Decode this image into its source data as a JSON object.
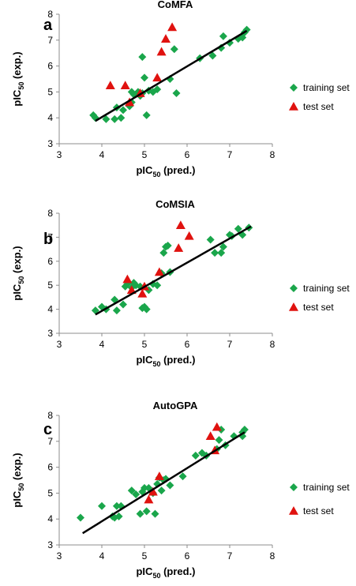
{
  "colors": {
    "training": "#1aa64b",
    "test": "#e0120f",
    "axis": "#8c8c8c",
    "fit": "#000000"
  },
  "chart_data": [
    {
      "type": "scatter",
      "letter": "a",
      "title": "CoMFA",
      "xlabel_main": "pIC",
      "xlabel_sub": "50",
      "xlabel_suffix": " (pred.)",
      "ylabel_main": "pIC",
      "ylabel_sub": "50",
      "ylabel_suffix": " (exp.)",
      "xlim": [
        3,
        8
      ],
      "ylim": [
        3,
        8
      ],
      "xticks": [
        "3",
        "4",
        "5",
        "6",
        "7",
        "8"
      ],
      "yticks": [
        "3",
        "4",
        "5",
        "6",
        "7",
        "8"
      ],
      "fit_line": {
        "x": [
          3.85,
          7.4
        ],
        "y": [
          3.88,
          7.36
        ]
      },
      "series": [
        {
          "name": "training set",
          "marker": "diamond",
          "x": [
            3.8,
            3.85,
            4.1,
            4.3,
            4.35,
            4.45,
            4.5,
            4.65,
            4.7,
            4.7,
            4.75,
            4.85,
            4.9,
            4.95,
            5.0,
            5.05,
            5.1,
            5.2,
            5.3,
            5.6,
            5.75,
            5.7,
            4.95,
            6.3,
            6.6,
            6.8,
            6.85,
            7.0,
            7.2,
            7.3,
            7.35,
            7.4
          ],
          "y": [
            4.1,
            4.0,
            3.95,
            3.95,
            4.4,
            4.0,
            4.3,
            4.45,
            4.6,
            5.0,
            4.9,
            5.0,
            4.85,
            6.35,
            5.55,
            4.1,
            5.05,
            5.0,
            5.1,
            5.5,
            4.95,
            6.65,
            4.95,
            6.3,
            6.4,
            6.7,
            7.15,
            6.9,
            7.05,
            7.1,
            7.3,
            7.4
          ]
        },
        {
          "name": "test set",
          "marker": "triangle",
          "x": [
            4.2,
            4.55,
            4.65,
            4.9,
            5.3,
            5.4,
            5.5,
            5.65
          ],
          "y": [
            5.25,
            5.25,
            4.6,
            4.95,
            5.55,
            6.55,
            7.05,
            7.5
          ]
        }
      ]
    },
    {
      "type": "scatter",
      "letter": "b",
      "title": "CoMSIA",
      "xlabel_main": "pIC",
      "xlabel_sub": "50",
      "xlabel_suffix": " (pred.)",
      "ylabel_main": "pIC",
      "ylabel_sub": "50",
      "ylabel_suffix": " (exp.)",
      "xlim": [
        3,
        8
      ],
      "ylim": [
        3,
        8
      ],
      "xticks": [
        "3",
        "4",
        "5",
        "6",
        "7",
        "8"
      ],
      "yticks": [
        "3",
        "4",
        "5",
        "6",
        "7",
        "8"
      ],
      "fit_line": {
        "x": [
          3.85,
          7.5
        ],
        "y": [
          3.78,
          7.45
        ]
      },
      "series": [
        {
          "name": "training set",
          "marker": "diamond",
          "x": [
            3.85,
            4.0,
            4.1,
            4.3,
            4.35,
            4.5,
            4.55,
            4.6,
            4.7,
            4.75,
            4.8,
            4.9,
            4.95,
            5.0,
            5.05,
            5.1,
            5.2,
            5.3,
            5.4,
            5.45,
            5.5,
            5.55,
            5.6,
            6.55,
            6.65,
            6.8,
            6.85,
            7.0,
            7.05,
            7.2,
            7.3,
            7.45
          ],
          "y": [
            3.95,
            4.1,
            4.0,
            4.4,
            3.95,
            4.2,
            4.95,
            5.05,
            4.9,
            5.1,
            5.0,
            4.95,
            4.05,
            4.1,
            4.0,
            4.8,
            5.05,
            5.0,
            5.5,
            6.35,
            6.6,
            6.65,
            5.55,
            6.9,
            6.35,
            6.35,
            6.6,
            7.1,
            7.05,
            7.35,
            7.1,
            7.4
          ]
        },
        {
          "name": "test set",
          "marker": "triangle",
          "x": [
            4.6,
            4.7,
            4.95,
            5.0,
            5.35,
            5.8,
            5.85,
            6.05
          ],
          "y": [
            5.25,
            4.8,
            4.65,
            4.95,
            5.55,
            6.55,
            7.5,
            7.05
          ]
        }
      ]
    },
    {
      "type": "scatter",
      "letter": "c",
      "title": "AutoGPA",
      "xlabel_main": "pIC",
      "xlabel_sub": "50",
      "xlabel_suffix": " (pred.)",
      "ylabel_main": "pIC",
      "ylabel_sub": "50",
      "ylabel_suffix": " (exp.)",
      "xlim": [
        3,
        8
      ],
      "ylim": [
        3,
        8
      ],
      "xticks": [
        "3",
        "4",
        "5",
        "6",
        "7",
        "8"
      ],
      "yticks": [
        "3",
        "4",
        "5",
        "6",
        "7",
        "8"
      ],
      "fit_line": {
        "x": [
          3.55,
          7.35
        ],
        "y": [
          3.45,
          7.35
        ]
      },
      "series": [
        {
          "name": "training set",
          "marker": "diamond",
          "x": [
            3.5,
            4.0,
            4.25,
            4.3,
            4.35,
            4.4,
            4.45,
            4.7,
            4.8,
            4.9,
            4.95,
            5.0,
            5.05,
            5.1,
            5.2,
            5.25,
            5.3,
            5.35,
            5.4,
            5.45,
            5.5,
            5.6,
            5.9,
            6.2,
            6.35,
            6.45,
            6.7,
            6.75,
            6.8,
            6.9,
            7.1,
            7.3,
            7.35,
            7.3
          ],
          "y": [
            4.05,
            4.5,
            4.1,
            4.05,
            4.5,
            4.1,
            4.5,
            5.1,
            4.95,
            4.2,
            5.05,
            5.2,
            4.3,
            5.2,
            5.0,
            4.2,
            5.35,
            5.6,
            5.1,
            5.5,
            5.55,
            5.3,
            5.65,
            6.45,
            6.55,
            6.45,
            6.7,
            7.05,
            7.45,
            6.85,
            7.2,
            7.2,
            7.45,
            7.35
          ]
        },
        {
          "name": "test set",
          "marker": "triangle",
          "x": [
            5.1,
            5.2,
            5.35,
            6.55,
            6.65,
            6.7
          ],
          "y": [
            4.75,
            5.05,
            5.65,
            7.2,
            6.65,
            7.55
          ]
        }
      ]
    }
  ]
}
